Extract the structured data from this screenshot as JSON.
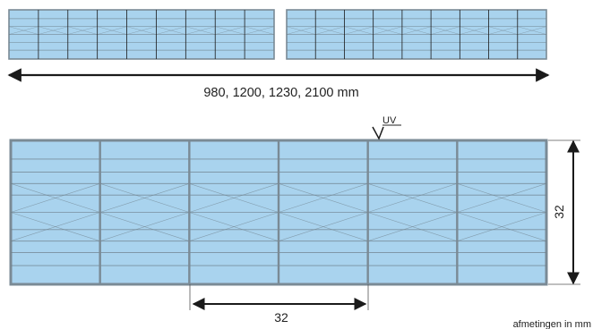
{
  "colors": {
    "panel_fill": "#a9d3ee",
    "panel_stroke": "#7a8a95",
    "rib": "#6e7f8a",
    "line": "#1a1a1a"
  },
  "top_view": {
    "length_label": "980, 1200, 1230, 2100 mm",
    "left_cells": 9,
    "right_cells": 9
  },
  "cross_section": {
    "uv_label": "UV",
    "height_label": "32",
    "pitch_label": "32",
    "cells": 6
  },
  "footnote": "afmetingen in mm"
}
